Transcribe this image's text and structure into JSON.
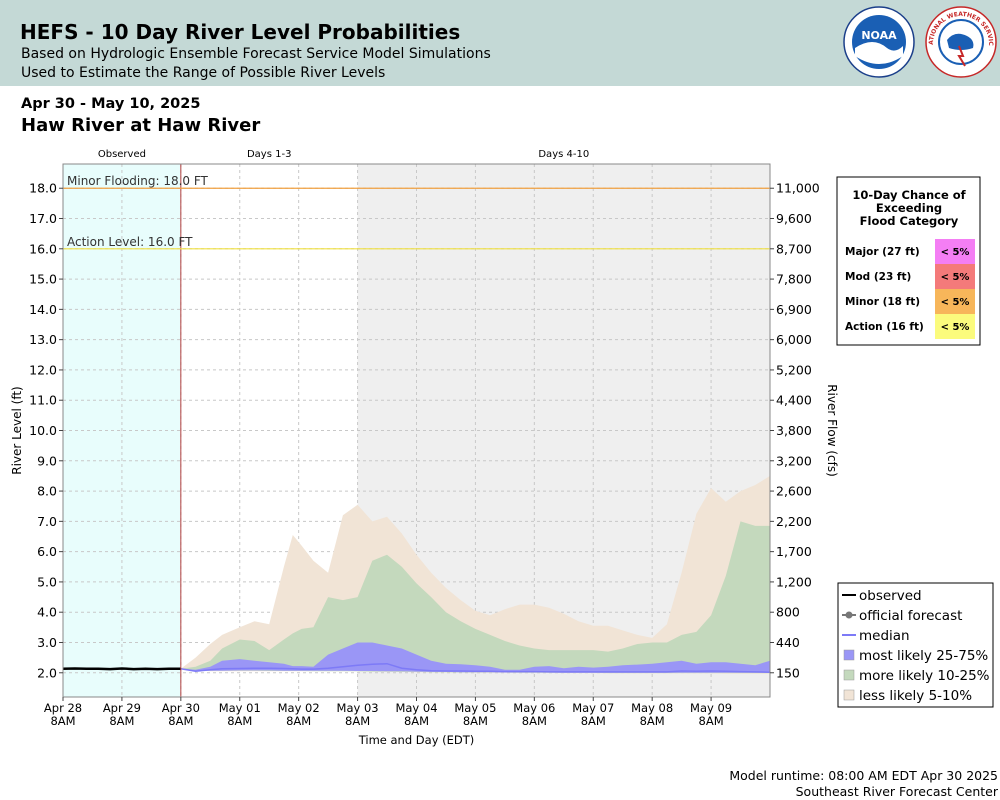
{
  "header": {
    "title": "HEFS - 10 Day River Level Probabilities",
    "subtitle1": "Based on Hydrologic Ensemble Forecast Service Model Simulations",
    "subtitle2": "Used to Estimate the Range of Possible River Levels",
    "logo_noaa_text": "NOAA",
    "logo_nws_text": "NATIONAL WEATHER SERVICE"
  },
  "date_range": "Apr 30 - May 10, 2025",
  "station": "Haw River at Haw River",
  "footer": {
    "runtime": "Model runtime: 08:00 AM EDT Apr 30 2025",
    "center": "Southeast River Forecast Center"
  },
  "colors": {
    "observed_bg": "#e8fdfc",
    "days410_bg": "#efefef",
    "forecast_line": "#b44040",
    "minor_line": "#f0a040",
    "action_line": "#f0e040",
    "band_5_10": "#f1e4d6",
    "band_10_25": "#c4d9bd",
    "band_25_75": "#9a96f6",
    "median": "#7d7af7",
    "observed": "#000000",
    "major": "#f47ef4",
    "moderate": "#f47a7a",
    "minor": "#f7b65a",
    "action": "#fbfb7d"
  },
  "flood_box": {
    "title_lines": [
      "10-Day Chance of",
      "Exceeding",
      "Flood Category"
    ],
    "rows": [
      {
        "label": "Major (27 ft)",
        "value": "< 5%",
        "color": "#f47ef4"
      },
      {
        "label": "Mod (23 ft)",
        "value": "< 5%",
        "color": "#f47a7a"
      },
      {
        "label": "Minor (18 ft)",
        "value": "< 5%",
        "color": "#f7b65a"
      },
      {
        "label": "Action (16 ft)",
        "value": "< 5%",
        "color": "#fbfb7d"
      }
    ]
  },
  "legend": [
    {
      "label": "observed",
      "kind": "line",
      "color": "#000000"
    },
    {
      "label": "official forecast",
      "kind": "dotline",
      "color": "#777777"
    },
    {
      "label": "median",
      "kind": "line",
      "color": "#7d7af7"
    },
    {
      "label": "most likely 25-75%",
      "kind": "swatch",
      "color": "#9a96f6"
    },
    {
      "label": "more likely 10-25%",
      "kind": "swatch",
      "color": "#c4d9bd"
    },
    {
      "label": "less likely 5-10%",
      "kind": "swatch",
      "color": "#f1e4d6"
    }
  ],
  "chart_data": {
    "type": "area",
    "xlabel": "Time and Day (EDT)",
    "ylabel": "River Level (ft)",
    "y2label": "River Flow (cfs)",
    "ylim": [
      1.2,
      18.8
    ],
    "xlim": [
      0,
      12
    ],
    "x_tick_labels": [
      [
        "Apr 28",
        "8AM"
      ],
      [
        "Apr 29",
        "8AM"
      ],
      [
        "Apr 30",
        "8AM"
      ],
      [
        "May 01",
        "8AM"
      ],
      [
        "May 02",
        "8AM"
      ],
      [
        "May 03",
        "8AM"
      ],
      [
        "May 04",
        "8AM"
      ],
      [
        "May 05",
        "8AM"
      ],
      [
        "May 06",
        "8AM"
      ],
      [
        "May 07",
        "8AM"
      ],
      [
        "May 08",
        "8AM"
      ],
      [
        "May 09",
        "8AM"
      ]
    ],
    "y_ticks": [
      2,
      3,
      4,
      5,
      6,
      7,
      8,
      9,
      10,
      11,
      12,
      13,
      14,
      15,
      16,
      17,
      18
    ],
    "y_tick_labels": [
      "2.0",
      "3.0",
      "4.0",
      "5.0",
      "6.0",
      "7.0",
      "8.0",
      "9.0",
      "10.0",
      "11.0",
      "12.0",
      "13.0",
      "14.0",
      "15.0",
      "16.0",
      "17.0",
      "18.0"
    ],
    "flow_ticks": [
      {
        "stage": 2.0,
        "label": "150"
      },
      {
        "stage": 3.0,
        "label": "440"
      },
      {
        "stage": 4.0,
        "label": "800"
      },
      {
        "stage": 5.0,
        "label": "1,200"
      },
      {
        "stage": 6.0,
        "label": "1,700"
      },
      {
        "stage": 7.0,
        "label": "2,200"
      },
      {
        "stage": 8.0,
        "label": "2,600"
      },
      {
        "stage": 9.0,
        "label": "3,200"
      },
      {
        "stage": 10.0,
        "label": "3,800"
      },
      {
        "stage": 11.0,
        "label": "4,400"
      },
      {
        "stage": 12.0,
        "label": "5,200"
      },
      {
        "stage": 13.0,
        "label": "6,000"
      },
      {
        "stage": 14.0,
        "label": "6,900"
      },
      {
        "stage": 15.0,
        "label": "7,800"
      },
      {
        "stage": 16.0,
        "label": "8,700"
      },
      {
        "stage": 17.0,
        "label": "9,600"
      },
      {
        "stage": 18.0,
        "label": "11,000"
      }
    ],
    "regions": [
      {
        "label": "Observed",
        "x0": 0,
        "x1": 2
      },
      {
        "label": "Days 1-3",
        "x0": 2,
        "x1": 5
      },
      {
        "label": "Days 4-10",
        "x0": 5,
        "x1": 12
      }
    ],
    "thresholds": [
      {
        "label": "Minor Flooding: 18.0 FT",
        "value": 18.0
      },
      {
        "label": "Action Level: 16.0 FT",
        "value": 16.0
      }
    ],
    "observed": {
      "x": [
        0,
        0.2,
        0.4,
        0.6,
        0.8,
        1.0,
        1.2,
        1.4,
        1.6,
        1.8,
        2.0
      ],
      "y": [
        2.13,
        2.14,
        2.13,
        2.13,
        2.12,
        2.14,
        2.12,
        2.13,
        2.12,
        2.13,
        2.13
      ]
    },
    "forecast_x": [
      2.0,
      2.25,
      2.5,
      2.7,
      3.0,
      3.25,
      3.5,
      3.75,
      3.9,
      4.05,
      4.25,
      4.5,
      4.75,
      5.0,
      5.25,
      5.5,
      5.75,
      6.0,
      6.25,
      6.5,
      6.75,
      7.0,
      7.25,
      7.5,
      7.75,
      8.0,
      8.25,
      8.5,
      8.75,
      9.0,
      9.25,
      9.5,
      9.75,
      10.0,
      10.25,
      10.5,
      10.75,
      11.0,
      11.25,
      11.5,
      11.75,
      12.0
    ],
    "series": [
      {
        "name": "less likely 5-10%",
        "role": "band",
        "color": "#f1e4d6",
        "upper": [
          2.13,
          2.5,
          2.95,
          3.25,
          3.5,
          3.7,
          3.6,
          5.5,
          6.55,
          6.2,
          5.7,
          5.3,
          7.2,
          7.55,
          7.0,
          7.15,
          6.6,
          5.9,
          5.3,
          4.8,
          4.4,
          4.05,
          3.9,
          4.1,
          4.25,
          4.25,
          4.15,
          3.95,
          3.7,
          3.55,
          3.55,
          3.4,
          3.25,
          3.15,
          3.6,
          5.3,
          7.25,
          8.1,
          7.65,
          8.0,
          8.2,
          8.5
        ],
        "lower": [
          2.13,
          2.1,
          2.05,
          2.05,
          2.05,
          2.05,
          2.05,
          2.05,
          2.05,
          2.05,
          2.05,
          2.05,
          2.05,
          2.05,
          2.04,
          2.03,
          2.03,
          2.02,
          2.02,
          2.01,
          2.01,
          2.0,
          2.0,
          2.0,
          2.0,
          2.0,
          2.0,
          1.99,
          1.99,
          1.99,
          1.98,
          1.98,
          1.98,
          1.98,
          1.98,
          1.98,
          1.98,
          1.98,
          1.97,
          1.97,
          1.97,
          1.97
        ]
      },
      {
        "name": "more likely 10-25%",
        "role": "band",
        "color": "#c4d9bd",
        "upper": [
          2.13,
          2.2,
          2.4,
          2.8,
          3.1,
          3.05,
          2.75,
          3.1,
          3.3,
          3.45,
          3.5,
          4.5,
          4.4,
          4.5,
          5.7,
          5.9,
          5.5,
          4.95,
          4.5,
          4.0,
          3.7,
          3.45,
          3.25,
          3.05,
          2.9,
          2.8,
          2.75,
          2.75,
          2.75,
          2.75,
          2.7,
          2.8,
          2.95,
          3.0,
          3.0,
          3.25,
          3.35,
          3.9,
          5.2,
          7.0,
          6.85,
          6.85
        ],
        "lower": [
          2.13,
          2.08,
          2.07,
          2.07,
          2.07,
          2.07,
          2.06,
          2.06,
          2.06,
          2.06,
          2.05,
          2.05,
          2.05,
          2.05,
          2.04,
          2.04,
          2.03,
          2.03,
          2.02,
          2.02,
          2.01,
          2.01,
          2.01,
          2.01,
          2.0,
          2.0,
          2.0,
          2.0,
          2.0,
          2.0,
          1.99,
          1.99,
          1.99,
          1.99,
          1.99,
          1.99,
          1.99,
          1.99,
          1.99,
          1.99,
          1.99,
          1.99
        ]
      },
      {
        "name": "most likely 25-75%",
        "role": "band",
        "color": "#9a96f6",
        "upper": [
          2.13,
          2.1,
          2.2,
          2.4,
          2.45,
          2.4,
          2.35,
          2.3,
          2.22,
          2.22,
          2.2,
          2.6,
          2.8,
          3.0,
          3.0,
          2.9,
          2.8,
          2.6,
          2.4,
          2.3,
          2.28,
          2.25,
          2.2,
          2.1,
          2.1,
          2.2,
          2.22,
          2.15,
          2.2,
          2.17,
          2.2,
          2.25,
          2.27,
          2.3,
          2.35,
          2.4,
          2.3,
          2.35,
          2.35,
          2.3,
          2.25,
          2.4
        ],
        "lower": [
          2.13,
          2.07,
          2.07,
          2.07,
          2.08,
          2.08,
          2.08,
          2.07,
          2.07,
          2.07,
          2.07,
          2.07,
          2.07,
          2.06,
          2.06,
          2.05,
          2.05,
          2.04,
          2.03,
          2.03,
          2.02,
          2.02,
          2.02,
          2.01,
          2.01,
          2.01,
          2.01,
          2.0,
          2.0,
          2.0,
          2.0,
          2.0,
          2.0,
          2.0,
          2.0,
          2.0,
          2.0,
          2.0,
          2.0,
          2.0,
          2.0,
          2.0
        ]
      },
      {
        "name": "median",
        "role": "line",
        "color": "#7d7af7",
        "values": [
          2.13,
          2.05,
          2.1,
          2.13,
          2.14,
          2.15,
          2.15,
          2.14,
          2.13,
          2.12,
          2.12,
          2.15,
          2.2,
          2.25,
          2.28,
          2.3,
          2.15,
          2.1,
          2.07,
          2.06,
          2.06,
          2.05,
          2.05,
          2.04,
          2.04,
          2.04,
          2.03,
          2.03,
          2.03,
          2.03,
          2.03,
          2.03,
          2.03,
          2.03,
          2.03,
          2.06,
          2.05,
          2.06,
          2.05,
          2.04,
          2.03,
          2.02
        ]
      }
    ]
  }
}
